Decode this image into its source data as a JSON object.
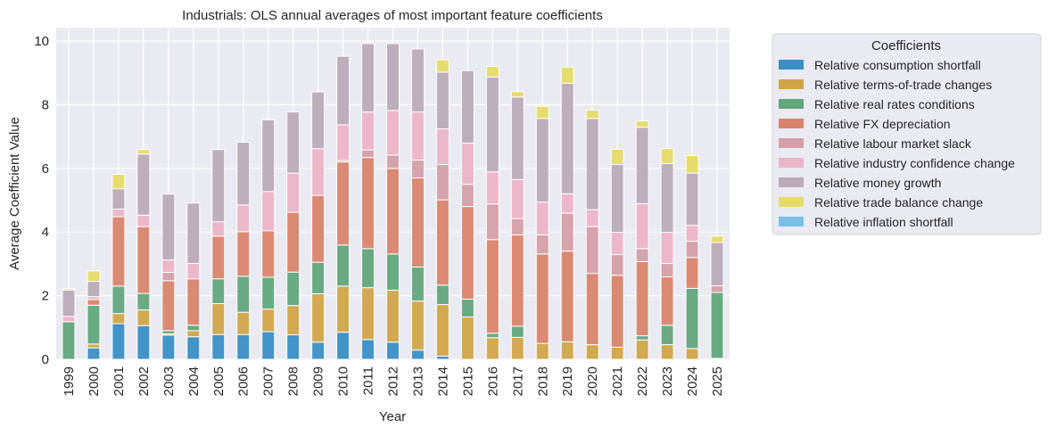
{
  "chart_data": {
    "type": "bar",
    "stacked": true,
    "title": "Industrials: OLS annual averages of most important feature coefficients",
    "xlabel": "Year",
    "ylabel": "Average Coefficient Value",
    "ylim": [
      0,
      10.42
    ],
    "yticks": [
      0,
      2,
      4,
      6,
      8,
      10
    ],
    "grid": true,
    "legend": {
      "title": "Coefficients",
      "placement": "outside-right"
    },
    "categories": [
      "1999",
      "2000",
      "2001",
      "2002",
      "2003",
      "2004",
      "2005",
      "2006",
      "2007",
      "2008",
      "2009",
      "2010",
      "2011",
      "2012",
      "2013",
      "2014",
      "2015",
      "2016",
      "2017",
      "2018",
      "2019",
      "2020",
      "2021",
      "2022",
      "2023",
      "2024",
      "2025"
    ],
    "series": [
      {
        "name": "Relative consumption shortfall",
        "color": "#3a8fc6",
        "values": [
          0,
          0.36,
          1.12,
          1.06,
          0.76,
          0.71,
          0.78,
          0.78,
          0.87,
          0.77,
          0.54,
          0.85,
          0.62,
          0.54,
          0.29,
          0.1,
          0,
          0,
          0,
          0,
          0,
          0,
          0,
          0,
          0,
          0,
          0
        ]
      },
      {
        "name": "Relative terms-of-trade changes",
        "color": "#d0a548",
        "values": [
          0,
          0.12,
          0.32,
          0.49,
          0.04,
          0.19,
          0.97,
          0.7,
          0.71,
          0.92,
          1.52,
          1.45,
          1.63,
          1.63,
          1.54,
          1.62,
          1.33,
          0.68,
          0.69,
          0.5,
          0.55,
          0.46,
          0.38,
          0.61,
          0.46,
          0.34,
          0.03
        ]
      },
      {
        "name": "Relative real rates conditions",
        "color": "#62a67c",
        "values": [
          1.18,
          1.22,
          0.86,
          0.52,
          0.1,
          0.17,
          0.78,
          1.13,
          1.0,
          1.05,
          0.99,
          1.29,
          1.23,
          1.14,
          1.07,
          0.61,
          0.56,
          0.14,
          0.35,
          0,
          0,
          0,
          0,
          0.13,
          0.61,
          1.89,
          2.07
        ]
      },
      {
        "name": "Relative FX depreciation",
        "color": "#d9856c",
        "values": [
          0,
          0.18,
          2.18,
          2.1,
          1.57,
          1.46,
          1.34,
          1.4,
          1.46,
          1.88,
          2.1,
          2.61,
          2.86,
          2.69,
          2.8,
          2.68,
          2.91,
          2.94,
          2.87,
          2.81,
          2.85,
          2.24,
          2.26,
          2.33,
          1.52,
          0.97,
          0
        ]
      },
      {
        "name": "Relative labour market slack",
        "color": "#d49fa6",
        "values": [
          0,
          0,
          0,
          0,
          0.26,
          0,
          0,
          0,
          0,
          0,
          0,
          0.05,
          0.24,
          0.42,
          0.56,
          1.11,
          0.7,
          1.12,
          0.51,
          0.6,
          1.19,
          1.47,
          0.65,
          0.41,
          0.42,
          0.51,
          0.21
        ]
      },
      {
        "name": "Relative industry confidence change",
        "color": "#ebb4c6",
        "values": [
          0.17,
          0.09,
          0.24,
          0.36,
          0.39,
          0.48,
          0.45,
          0.84,
          1.23,
          1.23,
          1.47,
          1.12,
          1.19,
          1.4,
          1.51,
          1.12,
          1.29,
          1.01,
          1.23,
          1.03,
          0.61,
          0.53,
          0.7,
          1.41,
          0.98,
          0.5,
          0
        ]
      },
      {
        "name": "Relative money growth",
        "color": "#b9abb6",
        "values": [
          0.83,
          0.48,
          0.64,
          1.92,
          2.07,
          1.9,
          2.27,
          1.97,
          2.25,
          1.92,
          1.78,
          2.15,
          2.15,
          2.1,
          1.98,
          1.78,
          2.28,
          2.98,
          2.59,
          2.63,
          3.47,
          2.87,
          2.13,
          2.4,
          2.16,
          1.64,
          1.36
        ]
      },
      {
        "name": "Relative trade balance change",
        "color": "#e5db68",
        "values": [
          0.04,
          0.33,
          0.45,
          0.14,
          0,
          0,
          0,
          0,
          0,
          0,
          0,
          0,
          0,
          0,
          0,
          0.39,
          0,
          0.33,
          0.17,
          0.38,
          0.51,
          0.26,
          0.48,
          0.2,
          0.47,
          0.55,
          0.2
        ]
      },
      {
        "name": "Relative inflation shortfall",
        "color": "#7bbfe9",
        "values": [
          0,
          0,
          0,
          0,
          0,
          0,
          0,
          0,
          0,
          0,
          0,
          0,
          0,
          0,
          0,
          0,
          0,
          0,
          0,
          0,
          0,
          0,
          0,
          0,
          0,
          0,
          0
        ]
      }
    ]
  }
}
